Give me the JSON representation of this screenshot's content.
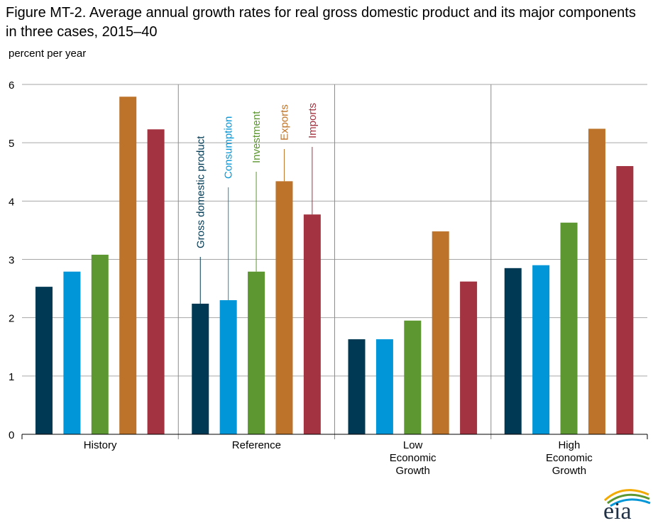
{
  "title": "Figure MT-2. Average annual growth rates for real gross domestic product and its major components in three cases, 2015–40",
  "logo_text": "eia",
  "chart_data": {
    "type": "bar",
    "title": "Figure MT-2. Average annual growth rates for real gross domestic product and its major components in three cases, 2015–40",
    "xlabel": "",
    "ylabel": "percent per year",
    "ylim": [
      0,
      6
    ],
    "yticks": [
      "0",
      "1",
      "2",
      "3",
      "4",
      "5",
      "6"
    ],
    "grid": true,
    "legend": "inline labels above Reference bars",
    "categories": [
      [
        "History"
      ],
      [
        "Reference"
      ],
      [
        "Low",
        "Economic",
        "Growth"
      ],
      [
        "High",
        "Economic",
        "Growth"
      ]
    ],
    "series": [
      {
        "name": "Gross domestic product",
        "color": "#003953",
        "values": [
          2.53,
          2.24,
          1.63,
          2.85
        ]
      },
      {
        "name": "Consumption",
        "color": "#0096d7",
        "values": [
          2.79,
          2.3,
          1.63,
          2.9
        ]
      },
      {
        "name": "Investment",
        "color": "#5d9732",
        "values": [
          3.08,
          2.79,
          1.95,
          3.63
        ]
      },
      {
        "name": "Exports",
        "color": "#bd732a",
        "values": [
          5.79,
          4.34,
          3.48,
          5.24
        ]
      },
      {
        "name": "Imports",
        "color": "#a33340",
        "values": [
          5.23,
          3.77,
          2.62,
          4.6
        ]
      }
    ]
  }
}
